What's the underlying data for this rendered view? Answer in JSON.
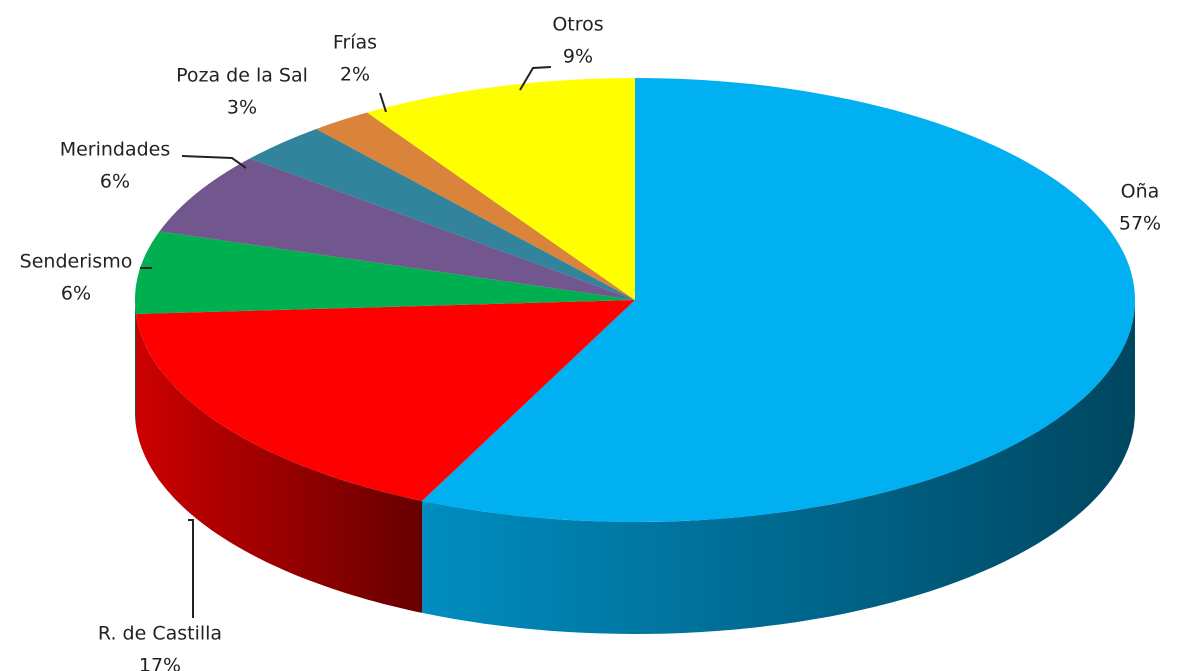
{
  "chart_data": {
    "type": "pie",
    "three_d": true,
    "categories": [
      "Oña",
      "R. de Castilla",
      "Senderismo",
      "Merindades",
      "Poza de la Sal",
      "Frías",
      "Otros"
    ],
    "values": [
      57,
      17,
      6,
      6,
      3,
      2,
      9
    ],
    "value_labels": [
      "57%",
      "17%",
      "6%",
      "6%",
      "3%",
      "2%",
      "9%"
    ],
    "colors": [
      "#00b0f0",
      "#ff0000",
      "#00b050",
      "#72578f",
      "#31849b",
      "#d9843a",
      "#ffff00"
    ]
  }
}
